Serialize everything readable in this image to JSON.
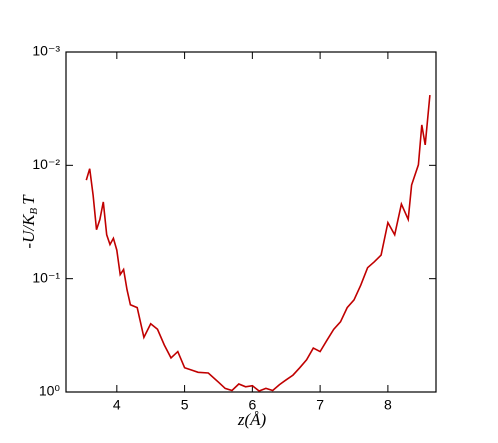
{
  "chart_data": {
    "type": "line",
    "x_label": "z(Å)",
    "y_label": [
      "-U/K",
      "B",
      "T"
    ],
    "x": [
      3.55,
      3.6,
      3.65,
      3.7,
      3.75,
      3.8,
      3.85,
      3.9,
      3.95,
      4.0,
      4.05,
      4.1,
      4.15,
      4.2,
      4.3,
      4.4,
      4.5,
      4.6,
      4.7,
      4.8,
      4.9,
      5.0,
      5.1,
      5.2,
      5.35,
      5.5,
      5.6,
      5.7,
      5.8,
      5.9,
      6.0,
      6.1,
      6.2,
      6.3,
      6.4,
      6.5,
      6.6,
      6.7,
      6.8,
      6.9,
      7.0,
      7.1,
      7.2,
      7.3,
      7.4,
      7.5,
      7.6,
      7.7,
      7.8,
      7.9,
      8.0,
      8.1,
      8.2,
      8.3,
      8.35,
      8.45,
      8.5,
      8.55,
      8.62
    ],
    "series": [
      {
        "color": "#c00000",
        "values": [
          0.0135,
          0.0107,
          0.0183,
          0.037,
          0.03,
          0.021,
          0.041,
          0.05,
          0.044,
          0.056,
          0.092,
          0.083,
          0.125,
          0.17,
          0.18,
          0.33,
          0.25,
          0.28,
          0.385,
          0.5,
          0.44,
          0.61,
          0.64,
          0.67,
          0.68,
          0.82,
          0.93,
          0.97,
          0.85,
          0.9,
          0.88,
          0.98,
          0.93,
          0.97,
          0.86,
          0.78,
          0.71,
          0.61,
          0.52,
          0.41,
          0.44,
          0.35,
          0.28,
          0.24,
          0.18,
          0.154,
          0.114,
          0.08,
          0.071,
          0.062,
          0.032,
          0.041,
          0.022,
          0.03,
          0.0149,
          0.0099,
          0.0044,
          0.0066,
          0.0024
        ]
      }
    ],
    "xlim": [
      3.25,
      8.71
    ],
    "xticks": [
      4,
      5,
      6,
      7,
      8
    ],
    "ylim": [
      0.001,
      1
    ],
    "log_y": true,
    "y_inverted": true,
    "yticks": [
      {
        "value": 0.001,
        "label": "10⁻³"
      },
      {
        "value": 0.01,
        "label": "10⁻²"
      },
      {
        "value": 0.1,
        "label": "10⁻¹"
      },
      {
        "value": 1,
        "label": "10⁰"
      }
    ]
  }
}
